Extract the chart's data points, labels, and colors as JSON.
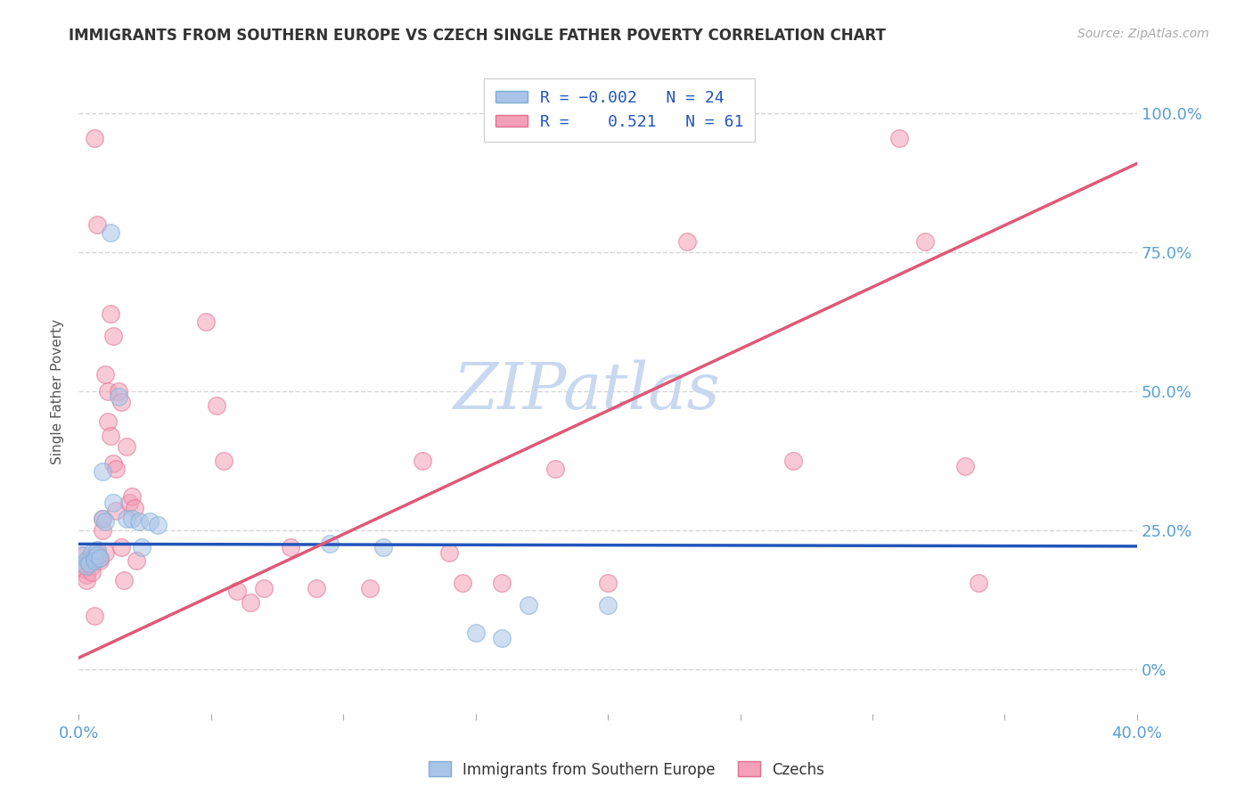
{
  "title": "IMMIGRANTS FROM SOUTHERN EUROPE VS CZECH SINGLE FATHER POVERTY CORRELATION CHART",
  "source": "Source: ZipAtlas.com",
  "ylabel": "Single Father Poverty",
  "ytick_values": [
    0.0,
    0.25,
    0.5,
    0.75,
    1.0
  ],
  "ytick_labels_right": [
    "0%",
    "25.0%",
    "50.0%",
    "75.0%",
    "100.0%"
  ],
  "xlim": [
    0.0,
    0.4
  ],
  "ylim": [
    -0.08,
    1.08
  ],
  "legend_labels_bottom": [
    "Immigrants from Southern Europe",
    "Czechs"
  ],
  "watermark": "ZIPatlas",
  "blue_scatter": [
    [
      0.002,
      0.205
    ],
    [
      0.003,
      0.195
    ],
    [
      0.003,
      0.185
    ],
    [
      0.004,
      0.19
    ],
    [
      0.005,
      0.21
    ],
    [
      0.006,
      0.2
    ],
    [
      0.006,
      0.195
    ],
    [
      0.007,
      0.215
    ],
    [
      0.007,
      0.205
    ],
    [
      0.008,
      0.2
    ],
    [
      0.009,
      0.355
    ],
    [
      0.009,
      0.27
    ],
    [
      0.01,
      0.265
    ],
    [
      0.012,
      0.785
    ],
    [
      0.013,
      0.3
    ],
    [
      0.015,
      0.49
    ],
    [
      0.018,
      0.27
    ],
    [
      0.02,
      0.27
    ],
    [
      0.023,
      0.265
    ],
    [
      0.024,
      0.22
    ],
    [
      0.027,
      0.265
    ],
    [
      0.03,
      0.26
    ],
    [
      0.095,
      0.225
    ],
    [
      0.115,
      0.22
    ],
    [
      0.15,
      0.065
    ],
    [
      0.16,
      0.055
    ],
    [
      0.17,
      0.115
    ],
    [
      0.2,
      0.115
    ]
  ],
  "pink_scatter": [
    [
      0.001,
      0.205
    ],
    [
      0.002,
      0.185
    ],
    [
      0.002,
      0.18
    ],
    [
      0.003,
      0.17
    ],
    [
      0.003,
      0.16
    ],
    [
      0.004,
      0.2
    ],
    [
      0.004,
      0.195
    ],
    [
      0.005,
      0.185
    ],
    [
      0.005,
      0.175
    ],
    [
      0.006,
      0.095
    ],
    [
      0.006,
      0.955
    ],
    [
      0.007,
      0.8
    ],
    [
      0.007,
      0.21
    ],
    [
      0.008,
      0.2
    ],
    [
      0.008,
      0.195
    ],
    [
      0.009,
      0.27
    ],
    [
      0.009,
      0.25
    ],
    [
      0.01,
      0.21
    ],
    [
      0.01,
      0.53
    ],
    [
      0.011,
      0.5
    ],
    [
      0.011,
      0.445
    ],
    [
      0.012,
      0.42
    ],
    [
      0.012,
      0.64
    ],
    [
      0.013,
      0.6
    ],
    [
      0.013,
      0.37
    ],
    [
      0.014,
      0.36
    ],
    [
      0.014,
      0.285
    ],
    [
      0.015,
      0.5
    ],
    [
      0.016,
      0.48
    ],
    [
      0.016,
      0.22
    ],
    [
      0.017,
      0.16
    ],
    [
      0.018,
      0.4
    ],
    [
      0.019,
      0.3
    ],
    [
      0.02,
      0.31
    ],
    [
      0.021,
      0.29
    ],
    [
      0.022,
      0.195
    ],
    [
      0.048,
      0.625
    ],
    [
      0.052,
      0.475
    ],
    [
      0.055,
      0.375
    ],
    [
      0.06,
      0.14
    ],
    [
      0.065,
      0.12
    ],
    [
      0.07,
      0.145
    ],
    [
      0.08,
      0.22
    ],
    [
      0.09,
      0.145
    ],
    [
      0.11,
      0.145
    ],
    [
      0.13,
      0.375
    ],
    [
      0.14,
      0.21
    ],
    [
      0.145,
      0.155
    ],
    [
      0.16,
      0.155
    ],
    [
      0.18,
      0.36
    ],
    [
      0.2,
      0.155
    ],
    [
      0.23,
      0.77
    ],
    [
      0.27,
      0.375
    ],
    [
      0.31,
      0.955
    ],
    [
      0.32,
      0.77
    ],
    [
      0.335,
      0.365
    ],
    [
      0.34,
      0.155
    ]
  ],
  "blue_line_x": [
    0.0,
    0.4
  ],
  "blue_line_y": [
    0.225,
    0.221
  ],
  "pink_line_x": [
    0.0,
    0.4
  ],
  "pink_line_y": [
    0.02,
    0.91
  ],
  "scatter_size": 200,
  "scatter_alpha": 0.55,
  "scatter_blue_face": "#aac4e8",
  "scatter_blue_edge": "#7daed4",
  "scatter_pink_face": "#f4a0b8",
  "scatter_pink_edge": "#e07090",
  "line_blue_color": "#2255bb",
  "line_pink_color": "#e05878",
  "grid_color": "#cccccc",
  "grid_style": "--",
  "watermark_color": "#c8d8f0",
  "title_color": "#333333",
  "axis_tick_color": "#5a9fd4",
  "right_tick_color": "#5a9fd4"
}
